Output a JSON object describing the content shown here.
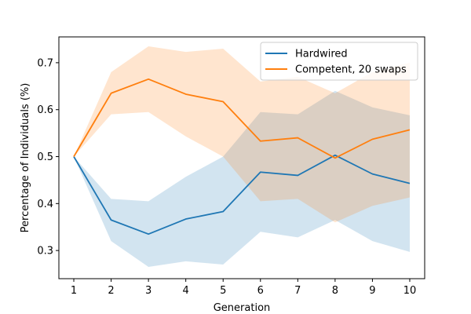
{
  "chart_data": {
    "type": "line",
    "title": "",
    "xlabel": "Generation",
    "ylabel": "Percentage of Individuals (%)",
    "xlim": [
      0.6,
      10.4
    ],
    "ylim": [
      0.24,
      0.755
    ],
    "x_ticks": [
      1,
      2,
      3,
      4,
      5,
      6,
      7,
      8,
      9,
      10
    ],
    "y_ticks": [
      0.3,
      0.4,
      0.5,
      0.6,
      0.7
    ],
    "y_tick_labels": [
      "0.3",
      "0.4",
      "0.5",
      "0.6",
      "0.7"
    ],
    "grid": false,
    "legend_position": "top-right",
    "x": [
      1,
      2,
      3,
      4,
      5,
      6,
      7,
      8,
      9,
      10
    ],
    "series": [
      {
        "name": "Hardwired",
        "color": "#1f77b4",
        "band_color": "#1f77b4",
        "values": [
          0.5,
          0.365,
          0.335,
          0.367,
          0.383,
          0.467,
          0.46,
          0.503,
          0.463,
          0.443
        ],
        "lower": [
          0.5,
          0.32,
          0.265,
          0.277,
          0.27,
          0.34,
          0.328,
          0.365,
          0.32,
          0.297
        ],
        "upper": [
          0.5,
          0.41,
          0.405,
          0.457,
          0.5,
          0.595,
          0.59,
          0.64,
          0.605,
          0.588
        ]
      },
      {
        "name": "Competent, 20 swaps",
        "color": "#ff7f0e",
        "band_color": "#ff7f0e",
        "values": [
          0.5,
          0.635,
          0.665,
          0.633,
          0.617,
          0.533,
          0.54,
          0.497,
          0.537,
          0.557
        ],
        "lower": [
          0.5,
          0.59,
          0.595,
          0.543,
          0.5,
          0.405,
          0.41,
          0.36,
          0.395,
          0.413
        ],
        "upper": [
          0.5,
          0.68,
          0.735,
          0.723,
          0.73,
          0.66,
          0.67,
          0.635,
          0.68,
          0.7
        ]
      }
    ]
  }
}
